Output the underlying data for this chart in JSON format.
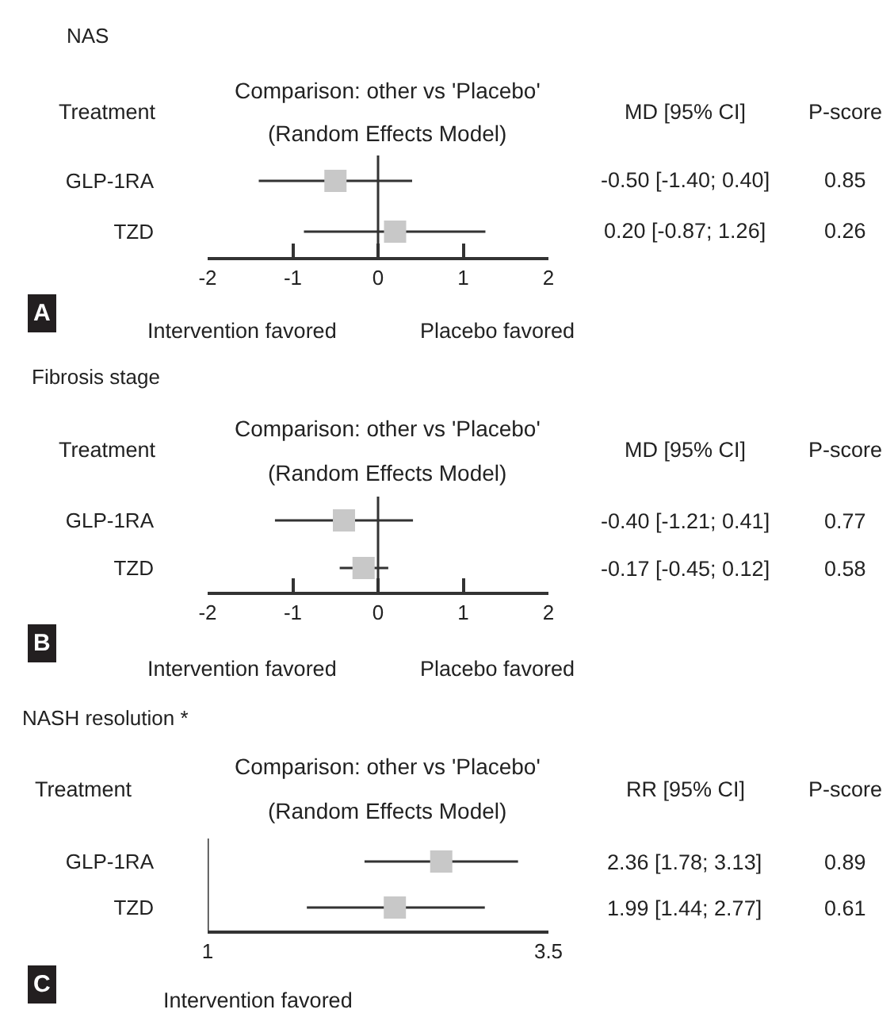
{
  "chart_data": [
    {
      "type": "scatter",
      "title": "NAS",
      "subtitle": "Comparison: other vs 'Placebo'\n(Random Effects Model)",
      "categories": [
        "GLP-1RA",
        "TZD"
      ],
      "orientation": "horizontal",
      "values": [
        -0.5,
        0.2
      ],
      "errors": [
        [
          -1.4,
          0.4
        ],
        [
          -0.87,
          1.26
        ]
      ],
      "value_labels": [
        "-0.50 [-1.40; 0.40]",
        "0.20 [-0.87; 1.26]"
      ],
      "color": "#c8c8c8",
      "marker": "square",
      "xlim": [
        -2,
        2
      ],
      "xticks": [
        -2,
        -1,
        0,
        1,
        2
      ],
      "ref_lines": [
        {
          "axis": "x",
          "value": 0
        }
      ],
      "legend": false,
      "annotations": [
        "Treatment",
        "MD [95% CI]",
        "P-score",
        "A",
        "0.85",
        "0.26",
        "Intervention favored",
        "Placebo favored"
      ]
    },
    {
      "type": "scatter",
      "title": "Fibrosis stage",
      "subtitle": "Comparison: other vs 'Placebo'\n(Random Effects Model)",
      "categories": [
        "GLP-1RA",
        "TZD"
      ],
      "orientation": "horizontal",
      "values": [
        -0.4,
        -0.17
      ],
      "errors": [
        [
          -1.21,
          0.41
        ],
        [
          -0.45,
          0.12
        ]
      ],
      "value_labels": [
        "-0.40 [-1.21; 0.41]",
        "-0.17 [-0.45; 0.12]"
      ],
      "color": "#c8c8c8",
      "marker": "square",
      "xlim": [
        -2,
        2
      ],
      "xticks": [
        -2,
        -1,
        0,
        1,
        2
      ],
      "ref_lines": [
        {
          "axis": "x",
          "value": 0
        }
      ],
      "legend": false,
      "annotations": [
        "Treatment",
        "MD [95% CI]",
        "P-score",
        "B",
        "0.77",
        "0.58",
        "Intervention favored",
        "Placebo favored"
      ]
    },
    {
      "type": "scatter",
      "title": "NASH resolution *",
      "subtitle": "Comparison: other vs 'Placebo'\n(Random Effects Model)",
      "categories": [
        "GLP-1RA",
        "TZD"
      ],
      "orientation": "horizontal",
      "values": [
        2.36,
        1.99
      ],
      "errors": [
        [
          1.78,
          3.13
        ],
        [
          1.44,
          2.77
        ]
      ],
      "value_labels": [
        "2.36 [1.78; 3.13]",
        "1.99 [1.44; 2.77]"
      ],
      "color": "#c8c8c8",
      "marker": "square",
      "log": "x",
      "xlim": [
        1,
        3.5
      ],
      "xticks": [
        1,
        3.5
      ],
      "ref_lines": [
        {
          "axis": "x",
          "value": 1
        }
      ],
      "legend": false,
      "annotations": [
        "Treatment",
        "RR [95% CI]",
        "P-score",
        "C",
        "0.89",
        "0.61",
        "Intervention favored"
      ]
    }
  ]
}
